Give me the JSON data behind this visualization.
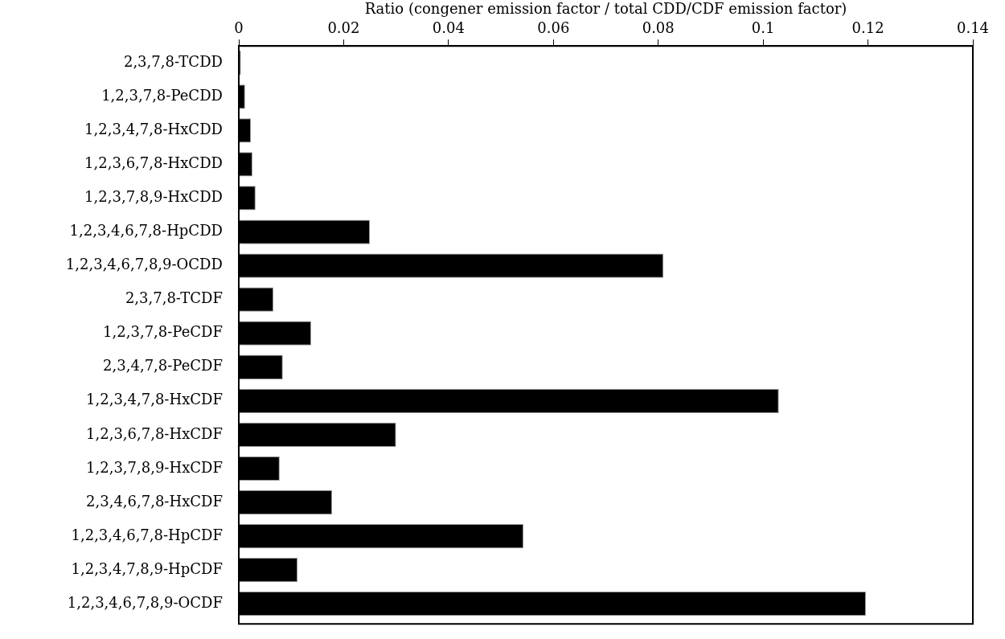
{
  "chart_data": {
    "type": "bar",
    "orientation": "horizontal",
    "xlabel": "Ratio (congener emission factor / total CDD/CDF emission factor)",
    "categories": [
      "2,3,7,8-TCDD",
      "1,2,3,7,8-PeCDD",
      "1,2,3,4,7,8-HxCDD",
      "1,2,3,6,7,8-HxCDD",
      "1,2,3,7,8,9-HxCDD",
      "1,2,3,4,6,7,8-HpCDD",
      "1,2,3,4,6,7,8,9-OCDD",
      "2,3,7,8-TCDF",
      "1,2,3,7,8-PeCDF",
      "2,3,4,7,8-PeCDF",
      "1,2,3,4,7,8-HxCDF",
      "1,2,3,6,7,8-HxCDF",
      "1,2,3,7,8,9-HxCDF",
      "2,3,4,6,7,8-HxCDF",
      "1,2,3,4,6,7,8-HpCDF",
      "1,2,3,4,7,8,9-HpCDF",
      "1,2,3,4,6,7,8,9-OCDF"
    ],
    "values": [
      0.0004,
      0.0012,
      0.0023,
      0.0026,
      0.0032,
      0.025,
      0.081,
      0.0066,
      0.0138,
      0.0084,
      0.103,
      0.03,
      0.0078,
      0.0178,
      0.0543,
      0.0112,
      0.1196
    ],
    "color": "#000000",
    "xlim": [
      0,
      0.14
    ],
    "xticks": [
      0,
      0.02,
      0.04,
      0.06,
      0.08,
      0.1,
      0.12,
      0.14
    ],
    "grid": false,
    "legend": false
  }
}
